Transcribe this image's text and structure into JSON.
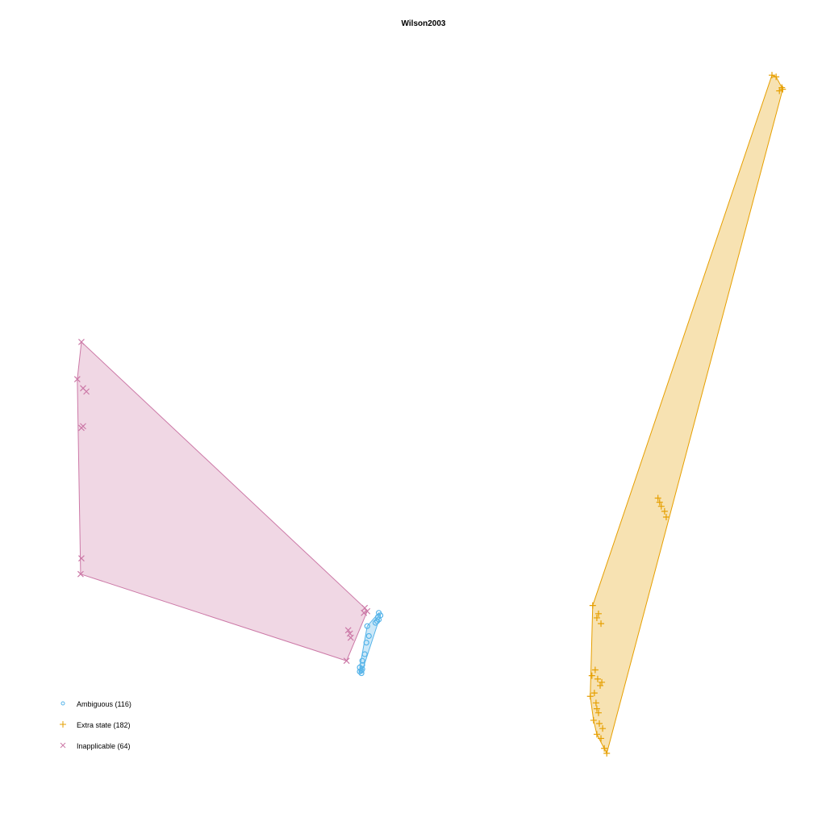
{
  "chart_data": {
    "type": "scatter",
    "title": "Wilson2003",
    "xlabel": "",
    "ylabel": "",
    "axes_shown": false,
    "grid": false,
    "legend_position": "bottom-left",
    "series": [
      {
        "name": "Ambiguous (116)",
        "marker": "circle",
        "color": "#56b4e9",
        "fill": "rgba(86,180,233,0.3)",
        "points": [
          [
            0.427,
            0.758
          ],
          [
            0.441,
            0.742
          ],
          [
            0.443,
            0.745
          ],
          [
            0.441,
            0.75
          ],
          [
            0.44,
            0.747
          ],
          [
            0.429,
            0.77
          ],
          [
            0.426,
            0.778
          ],
          [
            0.424,
            0.792
          ],
          [
            0.421,
            0.8
          ],
          [
            0.418,
            0.808
          ],
          [
            0.42,
            0.812
          ],
          [
            0.42,
            0.815
          ],
          [
            0.418,
            0.813
          ],
          [
            0.421,
            0.81
          ],
          [
            0.421,
            0.805
          ],
          [
            0.437,
            0.754
          ],
          [
            0.439,
            0.752
          ]
        ]
      },
      {
        "name": "Extra state (182)",
        "marker": "plus",
        "color": "#e69f00",
        "fill": "rgba(230,159,0,0.3)",
        "points": [
          [
            0.917,
            0.091
          ],
          [
            0.922,
            0.093
          ],
          [
            0.929,
            0.106
          ],
          [
            0.926,
            0.11
          ],
          [
            0.93,
            0.108
          ],
          [
            0.779,
            0.603
          ],
          [
            0.783,
            0.613
          ],
          [
            0.787,
            0.619
          ],
          [
            0.789,
            0.626
          ],
          [
            0.781,
            0.608
          ],
          [
            0.7,
            0.733
          ],
          [
            0.707,
            0.743
          ],
          [
            0.71,
            0.755
          ],
          [
            0.705,
            0.748
          ],
          [
            0.699,
            0.818
          ],
          [
            0.703,
            0.811
          ],
          [
            0.706,
            0.822
          ],
          [
            0.709,
            0.83
          ],
          [
            0.711,
            0.826
          ],
          [
            0.702,
            0.839
          ],
          [
            0.697,
            0.843
          ],
          [
            0.704,
            0.851
          ],
          [
            0.705,
            0.858
          ],
          [
            0.707,
            0.863
          ],
          [
            0.701,
            0.872
          ],
          [
            0.708,
            0.876
          ],
          [
            0.712,
            0.882
          ],
          [
            0.705,
            0.889
          ],
          [
            0.71,
            0.894
          ],
          [
            0.714,
            0.906
          ],
          [
            0.717,
            0.912
          ]
        ]
      },
      {
        "name": "Inapplicable (64)",
        "marker": "cross",
        "color": "#cc79a7",
        "fill": "rgba(204,121,167,0.3)",
        "points": [
          [
            0.081,
            0.414
          ],
          [
            0.076,
            0.459
          ],
          [
            0.083,
            0.47
          ],
          [
            0.087,
            0.474
          ],
          [
            0.083,
            0.516
          ],
          [
            0.081,
            0.518
          ],
          [
            0.081,
            0.676
          ],
          [
            0.08,
            0.695
          ],
          [
            0.402,
            0.8
          ],
          [
            0.404,
            0.763
          ],
          [
            0.406,
            0.767
          ],
          [
            0.407,
            0.772
          ],
          [
            0.424,
            0.736
          ],
          [
            0.427,
            0.74
          ],
          [
            0.423,
            0.742
          ]
        ]
      }
    ]
  }
}
